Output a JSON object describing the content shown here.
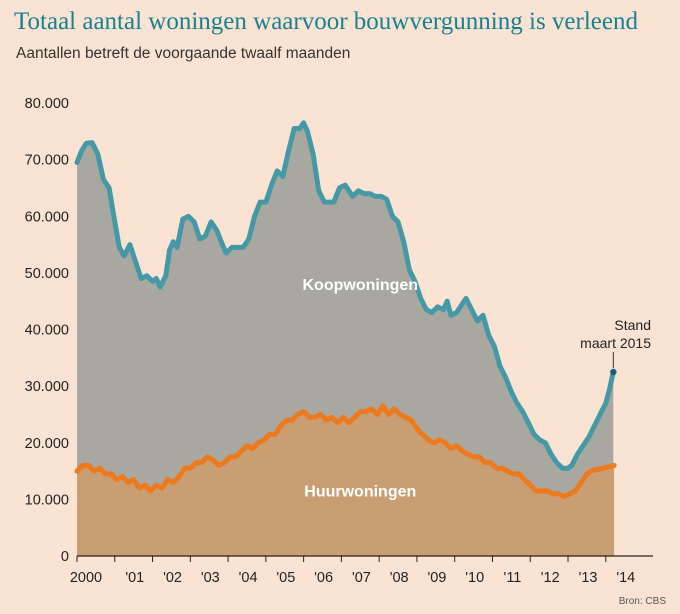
{
  "title": "Totaal aantal woningen waarvoor bouwvergunning is verleend",
  "subtitle": "Aantallen betreft de voorgaande twaalf maanden",
  "source": "Bron: CBS",
  "colors": {
    "koop": "#4599a7",
    "huur": "#ee7a1e",
    "koop_fill": "#a8a8a0",
    "huur_fill": "#c99e72",
    "title": "#16828f",
    "background": "#fbe3d3"
  },
  "chart_data": {
    "type": "area",
    "title": "Totaal aantal woningen waarvoor bouwvergunning is verleend",
    "subtitle": "Aantallen betreft de voorgaande twaalf maanden",
    "xlabel": "",
    "ylabel": "",
    "ylim": [
      0,
      80000
    ],
    "xlim": [
      2000.0,
      2015.25
    ],
    "grid": false,
    "y_ticks": [
      0,
      10000,
      20000,
      30000,
      40000,
      50000,
      60000,
      70000,
      80000
    ],
    "y_tick_labels": [
      "0",
      "10.000",
      "20.000",
      "30.000",
      "40.000",
      "50.000",
      "60.000",
      "70.000",
      "80.000"
    ],
    "x_ticks": [
      2000,
      2001,
      2002,
      2003,
      2004,
      2005,
      2006,
      2007,
      2008,
      2009,
      2010,
      2011,
      2012,
      2013,
      2014
    ],
    "x_tick_labels": [
      "2000",
      "'01",
      "'02",
      "'03",
      "'04",
      "'05",
      "'06",
      "'07",
      "'08",
      "'09",
      "'10",
      "'11",
      "'12",
      "'13",
      "'14"
    ],
    "series": [
      {
        "name": "Koopwoningen",
        "points": [
          [
            2000.0,
            69500
          ],
          [
            2000.12,
            71500
          ],
          [
            2000.25,
            72900
          ],
          [
            2000.4,
            73000
          ],
          [
            2000.55,
            71000
          ],
          [
            2000.7,
            66500
          ],
          [
            2000.85,
            65000
          ],
          [
            2001.0,
            59000
          ],
          [
            2001.12,
            54500
          ],
          [
            2001.25,
            53000
          ],
          [
            2001.4,
            55000
          ],
          [
            2001.55,
            52000
          ],
          [
            2001.7,
            49000
          ],
          [
            2001.85,
            49500
          ],
          [
            2002.0,
            48500
          ],
          [
            2002.1,
            49000
          ],
          [
            2002.2,
            47500
          ],
          [
            2002.35,
            49500
          ],
          [
            2002.45,
            54000
          ],
          [
            2002.55,
            55500
          ],
          [
            2002.65,
            54500
          ],
          [
            2002.8,
            59500
          ],
          [
            2002.95,
            60000
          ],
          [
            2003.1,
            59000
          ],
          [
            2003.25,
            56000
          ],
          [
            2003.4,
            56500
          ],
          [
            2003.55,
            59000
          ],
          [
            2003.7,
            57500
          ],
          [
            2003.85,
            55000
          ],
          [
            2003.95,
            53500
          ],
          [
            2004.1,
            54500
          ],
          [
            2004.25,
            54500
          ],
          [
            2004.4,
            54500
          ],
          [
            2004.55,
            56000
          ],
          [
            2004.7,
            60000
          ],
          [
            2004.85,
            62500
          ],
          [
            2005.0,
            62500
          ],
          [
            2005.15,
            65500
          ],
          [
            2005.3,
            68000
          ],
          [
            2005.45,
            67000
          ],
          [
            2005.6,
            71500
          ],
          [
            2005.75,
            75500
          ],
          [
            2005.9,
            75500
          ],
          [
            2006.0,
            76500
          ],
          [
            2006.1,
            75000
          ],
          [
            2006.25,
            71000
          ],
          [
            2006.4,
            64500
          ],
          [
            2006.55,
            62500
          ],
          [
            2006.7,
            62500
          ],
          [
            2006.8,
            62500
          ],
          [
            2006.95,
            65000
          ],
          [
            2007.1,
            65500
          ],
          [
            2007.3,
            63500
          ],
          [
            2007.45,
            64500
          ],
          [
            2007.6,
            64000
          ],
          [
            2007.75,
            64000
          ],
          [
            2007.9,
            63500
          ],
          [
            2008.05,
            63500
          ],
          [
            2008.2,
            63000
          ],
          [
            2008.35,
            60000
          ],
          [
            2008.5,
            59000
          ],
          [
            2008.65,
            55500
          ],
          [
            2008.8,
            50500
          ],
          [
            2008.95,
            48500
          ],
          [
            2009.1,
            45500
          ],
          [
            2009.25,
            43500
          ],
          [
            2009.4,
            43000
          ],
          [
            2009.55,
            44000
          ],
          [
            2009.7,
            43500
          ],
          [
            2009.8,
            45000
          ],
          [
            2009.9,
            42500
          ],
          [
            2010.05,
            43000
          ],
          [
            2010.15,
            44000
          ],
          [
            2010.3,
            45500
          ],
          [
            2010.45,
            43500
          ],
          [
            2010.6,
            41500
          ],
          [
            2010.75,
            42500
          ],
          [
            2010.9,
            39000
          ],
          [
            2011.05,
            37000
          ],
          [
            2011.2,
            33500
          ],
          [
            2011.35,
            31500
          ],
          [
            2011.5,
            29000
          ],
          [
            2011.65,
            27000
          ],
          [
            2011.8,
            25500
          ],
          [
            2011.95,
            23500
          ],
          [
            2012.1,
            21500
          ],
          [
            2012.25,
            20500
          ],
          [
            2012.4,
            20000
          ],
          [
            2012.55,
            18000
          ],
          [
            2012.7,
            16500
          ],
          [
            2012.85,
            15500
          ],
          [
            2013.0,
            15500
          ],
          [
            2013.1,
            16000
          ],
          [
            2013.25,
            18000
          ],
          [
            2013.4,
            19500
          ],
          [
            2013.55,
            21000
          ],
          [
            2013.7,
            23000
          ],
          [
            2013.85,
            25000
          ],
          [
            2014.0,
            27000
          ],
          [
            2014.1,
            29500
          ],
          [
            2014.2,
            32500
          ]
        ]
      },
      {
        "name": "Huurwoningen",
        "points": [
          [
            2000.0,
            15000
          ],
          [
            2000.15,
            16000
          ],
          [
            2000.3,
            16000
          ],
          [
            2000.45,
            15000
          ],
          [
            2000.6,
            15500
          ],
          [
            2000.75,
            14500
          ],
          [
            2000.9,
            14500
          ],
          [
            2001.05,
            13500
          ],
          [
            2001.2,
            14000
          ],
          [
            2001.35,
            13000
          ],
          [
            2001.5,
            13500
          ],
          [
            2001.65,
            12000
          ],
          [
            2001.8,
            12500
          ],
          [
            2001.95,
            11500
          ],
          [
            2002.1,
            12500
          ],
          [
            2002.25,
            12000
          ],
          [
            2002.4,
            13500
          ],
          [
            2002.55,
            13000
          ],
          [
            2002.7,
            14000
          ],
          [
            2002.85,
            15500
          ],
          [
            2003.0,
            15500
          ],
          [
            2003.15,
            16500
          ],
          [
            2003.3,
            16500
          ],
          [
            2003.45,
            17500
          ],
          [
            2003.6,
            17000
          ],
          [
            2003.75,
            16000
          ],
          [
            2003.9,
            16500
          ],
          [
            2004.05,
            17500
          ],
          [
            2004.2,
            17500
          ],
          [
            2004.35,
            18500
          ],
          [
            2004.5,
            19500
          ],
          [
            2004.65,
            19000
          ],
          [
            2004.8,
            20000
          ],
          [
            2004.95,
            20500
          ],
          [
            2005.1,
            21500
          ],
          [
            2005.25,
            21500
          ],
          [
            2005.4,
            23000
          ],
          [
            2005.55,
            24000
          ],
          [
            2005.7,
            24000
          ],
          [
            2005.85,
            25000
          ],
          [
            2006.0,
            25500
          ],
          [
            2006.15,
            24500
          ],
          [
            2006.3,
            24500
          ],
          [
            2006.45,
            25000
          ],
          [
            2006.6,
            24000
          ],
          [
            2006.75,
            24500
          ],
          [
            2006.9,
            23500
          ],
          [
            2007.05,
            24500
          ],
          [
            2007.2,
            23500
          ],
          [
            2007.35,
            24500
          ],
          [
            2007.5,
            25500
          ],
          [
            2007.65,
            25500
          ],
          [
            2007.8,
            26000
          ],
          [
            2007.95,
            25000
          ],
          [
            2008.1,
            26500
          ],
          [
            2008.25,
            25000
          ],
          [
            2008.4,
            26000
          ],
          [
            2008.55,
            25000
          ],
          [
            2008.7,
            24500
          ],
          [
            2008.85,
            24000
          ],
          [
            2009.0,
            22500
          ],
          [
            2009.15,
            21500
          ],
          [
            2009.3,
            20500
          ],
          [
            2009.45,
            20000
          ],
          [
            2009.6,
            20500
          ],
          [
            2009.75,
            20000
          ],
          [
            2009.9,
            19000
          ],
          [
            2010.05,
            19500
          ],
          [
            2010.2,
            18500
          ],
          [
            2010.35,
            18000
          ],
          [
            2010.5,
            17500
          ],
          [
            2010.65,
            17500
          ],
          [
            2010.8,
            16500
          ],
          [
            2010.95,
            16500
          ],
          [
            2011.1,
            15500
          ],
          [
            2011.25,
            15500
          ],
          [
            2011.4,
            15000
          ],
          [
            2011.55,
            14500
          ],
          [
            2011.7,
            14500
          ],
          [
            2011.85,
            13500
          ],
          [
            2012.0,
            12500
          ],
          [
            2012.15,
            11500
          ],
          [
            2012.3,
            11500
          ],
          [
            2012.45,
            11500
          ],
          [
            2012.6,
            11000
          ],
          [
            2012.75,
            11000
          ],
          [
            2012.9,
            10500
          ],
          [
            2013.05,
            11000
          ],
          [
            2013.2,
            11500
          ],
          [
            2013.35,
            13000
          ],
          [
            2013.5,
            14500
          ],
          [
            2013.6,
            15000
          ],
          [
            2014.22,
            16000
          ]
        ]
      }
    ],
    "annotations": [
      {
        "text": "Koopwoningen",
        "x": 2007.5,
        "y": 47000,
        "color": "#ffffff"
      },
      {
        "text": "Huurwoningen",
        "x": 2007.5,
        "y": 10500,
        "color": "#ffffff"
      },
      {
        "text_lines": [
          "Stand",
          "maart 2015"
        ],
        "x": 2015.15,
        "y": 32500,
        "color": "#222222"
      }
    ]
  }
}
